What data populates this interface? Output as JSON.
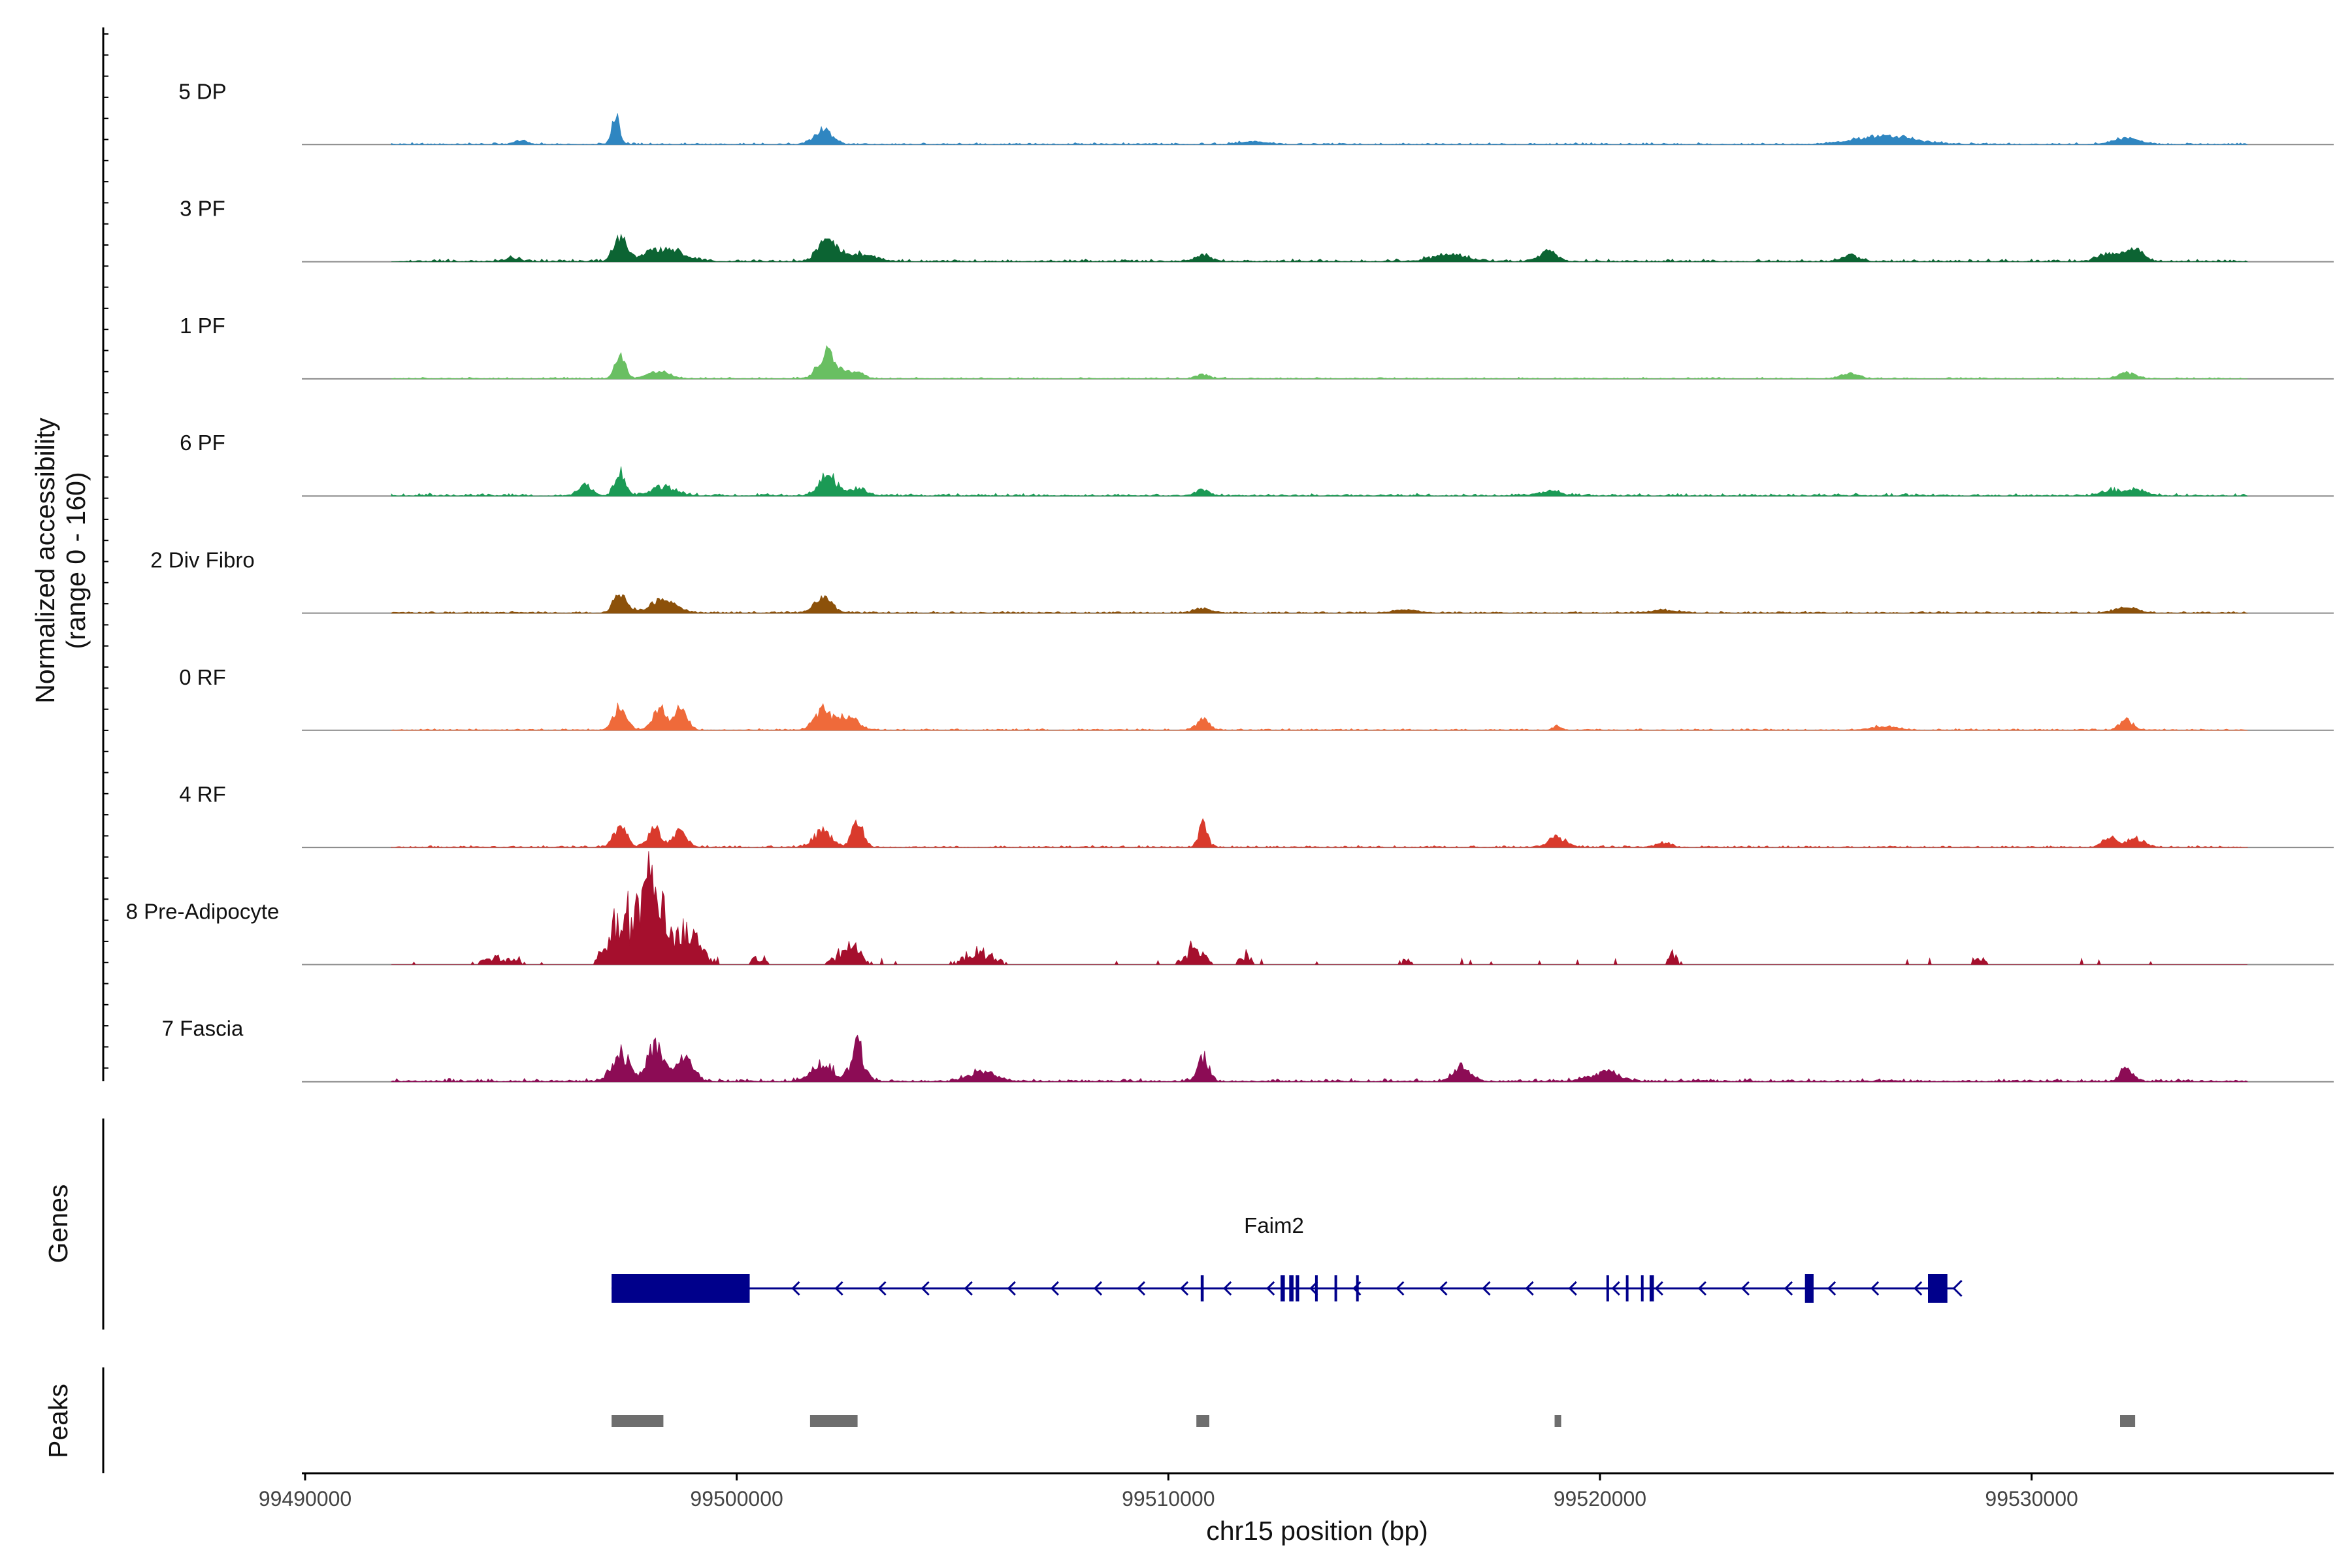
{
  "chart_data": {
    "type": "area",
    "title": "",
    "chromosome": "chr15",
    "xlabel": "chr15 position (bp)",
    "ylabel": [
      "Normalized accessibility",
      "(range 0 - 160)"
    ],
    "xlim": [
      99490000,
      99537000
    ],
    "ylim": [
      0,
      160
    ],
    "x_ticks": [
      {
        "value": 99490000,
        "label": "99490000"
      },
      {
        "value": 99500000,
        "label": "99500000"
      },
      {
        "value": 99510000,
        "label": "99510000"
      },
      {
        "value": 99520000,
        "label": "99520000"
      },
      {
        "value": 99530000,
        "label": "99530000"
      }
    ],
    "track_range": [
      99492000,
      99535000
    ],
    "tracks": [
      {
        "name": "5 DP",
        "color": "#2f86c1",
        "noise": 3,
        "jitter": 0.25,
        "peaks": [
          [
            99497200,
            38,
            90
          ],
          [
            99502000,
            20,
            200
          ],
          [
            99512000,
            4,
            300
          ],
          [
            99526600,
            11,
            700
          ],
          [
            99532200,
            8,
            300
          ],
          [
            99495000,
            5,
            150
          ]
        ]
      },
      {
        "name": "3 PF",
        "color": "#0c6433",
        "noise": 4,
        "jitter": 0.3,
        "peaks": [
          [
            99497300,
            32,
            150
          ],
          [
            99498300,
            18,
            400
          ],
          [
            99502100,
            30,
            220
          ],
          [
            99502900,
            10,
            300
          ],
          [
            99510800,
            8,
            200
          ],
          [
            99516500,
            9,
            400
          ],
          [
            99518800,
            14,
            200
          ],
          [
            99525800,
            8,
            200
          ],
          [
            99531800,
            10,
            250
          ],
          [
            99532400,
            16,
            200
          ],
          [
            99494800,
            4,
            200
          ]
        ]
      },
      {
        "name": "1 PF",
        "color": "#69bf62",
        "noise": 2.5,
        "jitter": 0.3,
        "peaks": [
          [
            99497300,
            30,
            120
          ],
          [
            99498200,
            10,
            250
          ],
          [
            99502100,
            35,
            200
          ],
          [
            99502700,
            10,
            200
          ],
          [
            99510800,
            6,
            150
          ],
          [
            99525800,
            7,
            200
          ],
          [
            99532200,
            8,
            200
          ]
        ]
      },
      {
        "name": "6 PF",
        "color": "#1b9a55",
        "noise": 4,
        "jitter": 0.35,
        "peaks": [
          [
            99497300,
            34,
            120
          ],
          [
            99498300,
            12,
            300
          ],
          [
            99496500,
            14,
            150
          ],
          [
            99502100,
            28,
            200
          ],
          [
            99502800,
            10,
            200
          ],
          [
            99510800,
            8,
            150
          ],
          [
            99531800,
            8,
            200
          ],
          [
            99532400,
            10,
            200
          ],
          [
            99518800,
            5,
            300
          ]
        ]
      },
      {
        "name": "2 Div Fibro",
        "color": "#8c510a",
        "noise": 3,
        "jitter": 0.3,
        "peaks": [
          [
            99497300,
            28,
            150
          ],
          [
            99498300,
            18,
            300
          ],
          [
            99502000,
            22,
            200
          ],
          [
            99510800,
            6,
            200
          ],
          [
            99532200,
            7,
            250
          ],
          [
            99515500,
            4,
            300
          ],
          [
            99521500,
            4,
            300
          ]
        ]
      },
      {
        "name": "0 RF",
        "color": "#ef6a3a",
        "noise": 2.5,
        "jitter": 0.3,
        "peaks": [
          [
            99497300,
            32,
            150
          ],
          [
            99498200,
            30,
            150
          ],
          [
            99498700,
            28,
            150
          ],
          [
            99502000,
            28,
            200
          ],
          [
            99502600,
            20,
            200
          ],
          [
            99510800,
            14,
            150
          ],
          [
            99526600,
            5,
            300
          ],
          [
            99532200,
            14,
            150
          ],
          [
            99519000,
            5,
            100
          ]
        ]
      },
      {
        "name": "4 RF",
        "color": "#d93a2c",
        "noise": 3,
        "jitter": 0.3,
        "peaks": [
          [
            99497300,
            30,
            150
          ],
          [
            99498100,
            24,
            150
          ],
          [
            99498700,
            22,
            150
          ],
          [
            99502000,
            22,
            200
          ],
          [
            99502800,
            34,
            130
          ],
          [
            99510800,
            32,
            100
          ],
          [
            99519000,
            14,
            200
          ],
          [
            99531800,
            14,
            150
          ],
          [
            99532400,
            12,
            200
          ],
          [
            99521500,
            6,
            150
          ]
        ]
      },
      {
        "name": "8 Pre-Adipocyte",
        "color": "#a50f2d",
        "noise": 1.5,
        "jitter": 0.75,
        "sparse": true,
        "peaks": [
          [
            99497300,
            80,
            250
          ],
          [
            99498000,
            130,
            250
          ],
          [
            99498800,
            55,
            300
          ],
          [
            99502600,
            28,
            250
          ],
          [
            99505600,
            20,
            350
          ],
          [
            99510600,
            28,
            200
          ],
          [
            99511800,
            12,
            150
          ],
          [
            99521700,
            16,
            100
          ],
          [
            99528800,
            12,
            100
          ],
          [
            99494500,
            10,
            400
          ],
          [
            99500500,
            10,
            150
          ],
          [
            99515500,
            7,
            150
          ]
        ]
      },
      {
        "name": "7 Fascia",
        "color": "#8c0c55",
        "noise": 5,
        "jitter": 0.35,
        "peaks": [
          [
            99497300,
            38,
            200
          ],
          [
            99498100,
            45,
            200
          ],
          [
            99498800,
            28,
            200
          ],
          [
            99502000,
            24,
            250
          ],
          [
            99502800,
            46,
            150
          ],
          [
            99510800,
            34,
            120
          ],
          [
            99516800,
            20,
            200
          ],
          [
            99520100,
            14,
            300
          ],
          [
            99532200,
            16,
            150
          ],
          [
            99505700,
            14,
            300
          ]
        ]
      }
    ],
    "genes": {
      "title": "Genes",
      "name": "Faim2",
      "strand": "-",
      "color": "#00008b",
      "transcript": [
        99497100,
        99528200
      ],
      "exons": [
        [
          99497100,
          99500300
        ],
        [
          99510750,
          99510820
        ],
        [
          99512600,
          99512700
        ],
        [
          99512800,
          99512900
        ],
        [
          99512950,
          99513030
        ],
        [
          99513400,
          99513450
        ],
        [
          99513850,
          99513900
        ],
        [
          99514350,
          99514400
        ],
        [
          99520150,
          99520200
        ],
        [
          99520600,
          99520650
        ],
        [
          99520950,
          99521000
        ],
        [
          99521150,
          99521250
        ],
        [
          99524750,
          99524950
        ],
        [
          99527600,
          99528050
        ]
      ]
    },
    "peaks": {
      "title": "Peaks",
      "color": "#6e6e6e",
      "regions": [
        [
          99497100,
          99498300
        ],
        [
          99501700,
          99502800
        ],
        [
          99510650,
          99510950
        ],
        [
          99518950,
          99519050
        ],
        [
          99532050,
          99532400
        ]
      ]
    }
  }
}
